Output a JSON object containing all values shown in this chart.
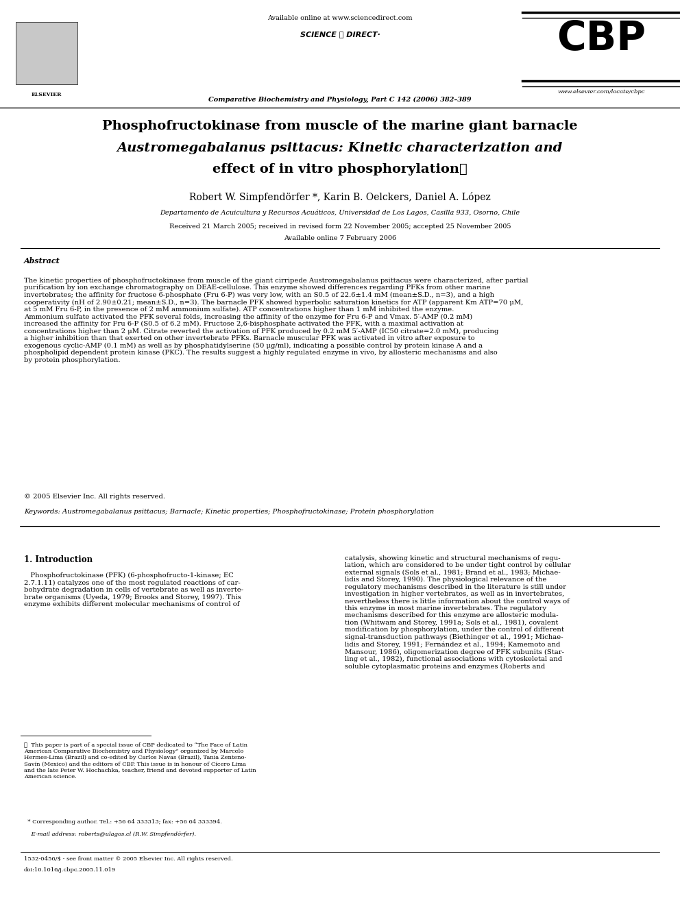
{
  "bg_color": "#ffffff",
  "available_online": "Available online at www.sciencedirect.com",
  "sciencedirect_text": "SCIENCE ⓐ DIRECT·",
  "journal": "Comparative Biochemistry and Physiology, Part C 142 (2006) 382–389",
  "cbp": "CBP",
  "website": "www.elsevier.com/locate/cbpc",
  "title_line1": "Phosphofructokinase from muscle of the marine giant barnacle",
  "title_line2a": "Austromegabalanus psittacus",
  "title_line2b": ": Kinetic characterization and",
  "title_line3": "effect of in vitro phosphorylation☆",
  "authors": "Robert W. Simpfendörfer *, Karin B. Oelckers, Daniel A. López",
  "affiliation": "Departamento de Acuicultura y Recursos Acuáticos, Universidad de Los Lagos, Casilla 933, Osorno, Chile",
  "received": "Received 21 March 2005; received in revised form 22 November 2005; accepted 25 November 2005",
  "available": "Available online 7 February 2006",
  "abstract_title": "Abstract",
  "abstract_body": "The kinetic properties of phosphofructokinase from muscle of the giant cirripede Austromegabalanus psittacus were characterized, after partial\npurification by ion exchange chromatography on DEAE-cellulose. This enzyme showed differences regarding PFKs from other marine\ninvertebrates; the affinity for fructose 6-phosphate (Fru 6-P) was very low, with an S0.5 of 22.6±1.4 mM (mean±S.D., n=3), and a high\ncooperativity (nH of 2.90±0.21; mean±S.D., n=3). The barnacle PFK showed hyperbolic saturation kinetics for ATP (apparent Km ATP=70 μM,\nat 5 mM Fru 6-P, in the presence of 2 mM ammonium sulfate). ATP concentrations higher than 1 mM inhibited the enzyme.\nAmmonium sulfate activated the PFK several folds, increasing the affinity of the enzyme for Fru 6-P and Vmax. 5′-AMP (0.2 mM)\nincreased the affinity for Fru 6-P (S0.5 of 6.2 mM). Fructose 2,6-bisphosphate activated the PFK, with a maximal activation at\nconcentrations higher than 2 μM. Citrate reverted the activation of PFK produced by 0.2 mM 5′-AMP (IC50 citrate=2.0 mM), producing\na higher inhibition than that exerted on other invertebrate PFKs. Barnacle muscular PFK was activated in vitro after exposure to\nexogenous cyclic-AMP (0.1 mM) as well as by phosphatidylserine (50 μg/ml), indicating a possible control by protein kinase A and a\nphospholipid dependent protein kinase (PKC). The results suggest a highly regulated enzyme in vivo, by allosteric mechanisms and also\nby protein phosphorylation.",
  "copyright": "© 2005 Elsevier Inc. All rights reserved.",
  "keywords": "Keywords: Austromegabalanus psittacus; Barnacle; Kinetic properties; Phosphofructokinase; Protein phosphorylation",
  "intro_title": "1. Introduction",
  "intro_col1": "   Phosphofructokinase (PFK) (6-phosphofructo-1-kinase; EC\n2.7.1.11) catalyzes one of the most regulated reactions of car-\nbohydrate degradation in cells of vertebrate as well as inverte-\nbrate organisms (Uyeda, 1979; Brooks and Storey, 1997). This\nenzyme exhibits different molecular mechanisms of control of",
  "intro_col2": "catalysis, showing kinetic and structural mechanisms of regu-\nlation, which are considered to be under tight control by cellular\nexternal signals (Sols et al., 1981; Brand et al., 1983; Michae-\nlidis and Storey, 1990). The physiological relevance of the\nregulatory mechanisms described in the literature is still under\ninvestigation in higher vertebrates, as well as in invertebrates,\nnevertheless there is little information about the control ways of\nthis enzyme in most marine invertebrates. The regulatory\nmechanisms described for this enzyme are allosteric modula-\ntion (Whitwam and Storey, 1991a; Sols et al., 1981), covalent\nmodification by phosphorylation, under the control of different\nsignal-transduction pathways (Biethinger et al., 1991; Michae-\nlidis and Storey, 1991; Fernández et al., 1994; Kamemoto and\nMansour, 1986), oligomerization degree of PFK subunits (Star-\nling et al., 1982), functional associations with cytoskeletal and\nsoluble cytoplasmatic proteins and enzymes (Roberts and",
  "footnote_line": "★  This paper is part of a special issue of CBP dedicated to “The Face of Latin\nAmerican Comparative Biochemistry and Physiology” organized by Marcelo\nHermes-Lima (Brazil) and co-edited by Carlos Navas (Brazil), Tania Zenteno-\nSavín (Mexico) and the editors of CBP. This issue is in honour of Cícero Lima\nand the late Peter W. Hochachka, teacher, friend and devoted supporter of Latin\nAmerican science.",
  "corresponding": "  * Corresponding author. Tel.: +56 64 333313; fax: +56 64 333394.",
  "email_line": "    E-mail address: roberts@ulagos.cl (R.W. Simpfendörfer).",
  "issn": "1532-0456/$ - see front matter © 2005 Elsevier Inc. All rights reserved.",
  "doi": "doi:10.1016/j.cbpc.2005.11.019"
}
